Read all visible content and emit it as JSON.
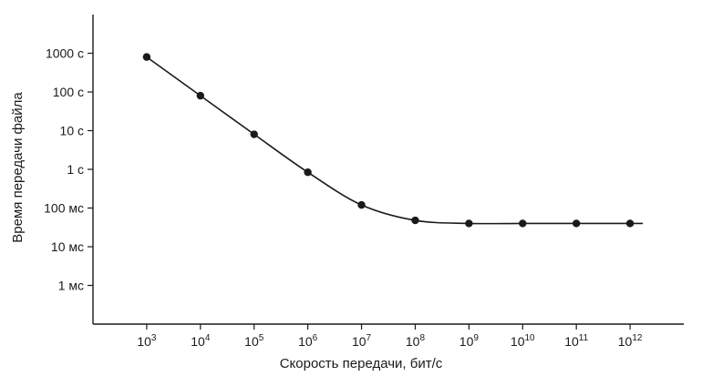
{
  "chart_data": {
    "type": "line",
    "title": "",
    "xlabel": "Скорость передачи, бит/с",
    "ylabel": "Время передачи файла",
    "x_scale": "log",
    "y_scale": "log",
    "x_ticks": [
      {
        "base": "10",
        "exp": "3",
        "value": 1000.0
      },
      {
        "base": "10",
        "exp": "4",
        "value": 10000.0
      },
      {
        "base": "10",
        "exp": "5",
        "value": 100000.0
      },
      {
        "base": "10",
        "exp": "6",
        "value": 1000000.0
      },
      {
        "base": "10",
        "exp": "7",
        "value": 10000000.0
      },
      {
        "base": "10",
        "exp": "8",
        "value": 100000000.0
      },
      {
        "base": "10",
        "exp": "9",
        "value": 1000000000.0
      },
      {
        "base": "10",
        "exp": "10",
        "value": 10000000000.0
      },
      {
        "base": "10",
        "exp": "11",
        "value": 100000000000.0
      },
      {
        "base": "10",
        "exp": "12",
        "value": 1000000000000.0
      }
    ],
    "y_ticks": [
      {
        "label": "1000 с",
        "value": 1000
      },
      {
        "label": "100 с",
        "value": 100
      },
      {
        "label": "10 с",
        "value": 10
      },
      {
        "label": "1 с",
        "value": 1
      },
      {
        "label": "100 мс",
        "value": 0.1
      },
      {
        "label": "10 мс",
        "value": 0.01
      },
      {
        "label": "1 мс",
        "value": 0.001
      }
    ],
    "xlim": [
      100.0,
      10000000000000.0
    ],
    "ylim": [
      0.0001,
      10000
    ],
    "grid": false,
    "series": [
      {
        "x": [
          1000.0,
          10000.0,
          100000.0,
          1000000.0,
          10000000.0,
          100000000.0,
          1000000000.0,
          10000000000.0,
          100000000000.0,
          1000000000000.0
        ],
        "y": [
          800,
          80,
          8.04,
          0.84,
          0.12,
          0.048,
          0.04,
          0.04,
          0.04,
          0.04
        ]
      }
    ],
    "colors": {
      "line": "#1a1a1a",
      "marker": "#1a1a1a",
      "axis": "#1a1a1a"
    }
  }
}
